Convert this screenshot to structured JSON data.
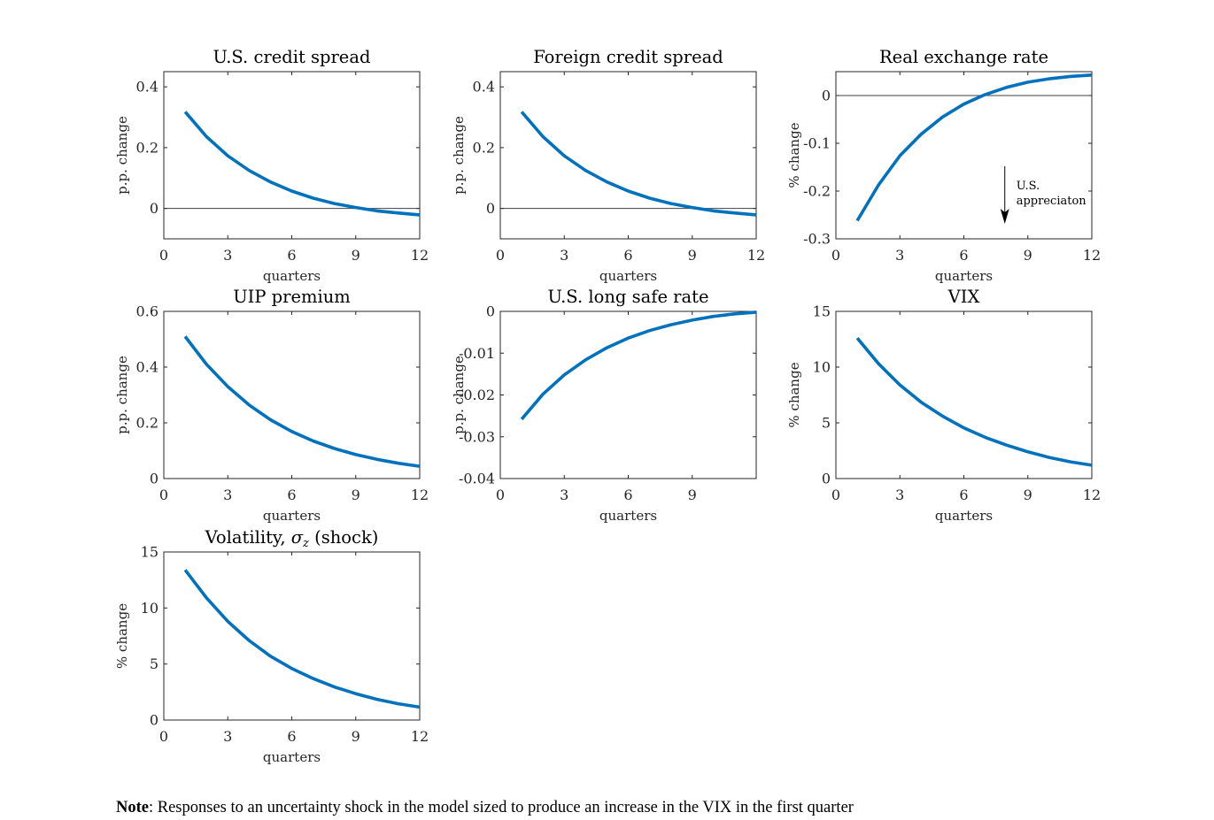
{
  "chart_data": [
    {
      "type": "line",
      "title": "U.S. credit spread",
      "xlabel": "quarters",
      "ylabel": "p.p. change",
      "xlim": [
        0,
        12
      ],
      "ylim": [
        -0.1,
        0.45
      ],
      "xticks": [
        0,
        3,
        6,
        9,
        12
      ],
      "yticks": [
        0,
        0.2,
        0.4
      ],
      "zero_line": true,
      "series": [
        {
          "color": "#0072BD",
          "x": [
            1,
            2,
            3,
            4,
            5,
            6,
            7,
            8,
            9,
            10,
            11,
            12
          ],
          "y": [
            0.318,
            0.236,
            0.173,
            0.125,
            0.087,
            0.057,
            0.034,
            0.016,
            0.003,
            -0.008,
            -0.015,
            -0.021
          ]
        }
      ]
    },
    {
      "type": "line",
      "title": "Foreign credit spread",
      "xlabel": "quarters",
      "ylabel": "p.p. change",
      "xlim": [
        0,
        12
      ],
      "ylim": [
        -0.1,
        0.45
      ],
      "xticks": [
        0,
        3,
        6,
        9,
        12
      ],
      "yticks": [
        0,
        0.2,
        0.4
      ],
      "zero_line": true,
      "series": [
        {
          "color": "#0072BD",
          "x": [
            1,
            2,
            3,
            4,
            5,
            6,
            7,
            8,
            9,
            10,
            11,
            12
          ],
          "y": [
            0.318,
            0.236,
            0.173,
            0.125,
            0.087,
            0.057,
            0.034,
            0.016,
            0.003,
            -0.008,
            -0.015,
            -0.021
          ]
        }
      ]
    },
    {
      "type": "line",
      "title": "Real exchange rate",
      "xlabel": "quarters",
      "ylabel": "% change",
      "xlim": [
        0,
        12
      ],
      "ylim": [
        -0.3,
        0.05
      ],
      "xticks": [
        0,
        3,
        6,
        9,
        12
      ],
      "yticks": [
        -0.3,
        -0.2,
        -0.1,
        0
      ],
      "zero_line": true,
      "annotation": {
        "text": [
          "U.S.",
          "appreciaton"
        ]
      },
      "series": [
        {
          "color": "#0072BD",
          "x": [
            1,
            2,
            3,
            4,
            5,
            6,
            7,
            8,
            9,
            10,
            11,
            12
          ],
          "y": [
            -0.262,
            -0.187,
            -0.126,
            -0.081,
            -0.045,
            -0.018,
            0.002,
            0.017,
            0.028,
            0.035,
            0.04,
            0.043
          ]
        }
      ]
    },
    {
      "type": "line",
      "title": "UIP premium",
      "xlabel": "quarters",
      "ylabel": "p.p. change",
      "xlim": [
        0,
        12
      ],
      "ylim": [
        0,
        0.6
      ],
      "xticks": [
        0,
        3,
        6,
        9,
        12
      ],
      "yticks": [
        0,
        0.2,
        0.4,
        0.6
      ],
      "zero_line": false,
      "series": [
        {
          "color": "#0072BD",
          "x": [
            1,
            2,
            3,
            4,
            5,
            6,
            7,
            8,
            9,
            10,
            11,
            12
          ],
          "y": [
            0.51,
            0.41,
            0.33,
            0.264,
            0.211,
            0.169,
            0.135,
            0.108,
            0.086,
            0.069,
            0.055,
            0.044
          ]
        }
      ]
    },
    {
      "type": "line",
      "title": "U.S. long safe rate",
      "xlabel": "quarters",
      "ylabel": "p.p. change",
      "xlim": [
        0,
        12
      ],
      "ylim": [
        -0.04,
        0
      ],
      "xticks": [
        0,
        3,
        6,
        9
      ],
      "yticks": [
        -0.04,
        -0.03,
        -0.02,
        -0.01,
        0
      ],
      "zero_line": false,
      "series": [
        {
          "color": "#0072BD",
          "x": [
            1,
            2,
            3,
            4,
            5,
            6,
            7,
            8,
            9,
            10,
            11,
            12
          ],
          "y": [
            -0.0258,
            -0.0198,
            -0.0152,
            -0.0116,
            -0.0087,
            -0.0064,
            -0.0046,
            -0.0032,
            -0.0021,
            -0.0012,
            -0.0006,
            -0.0002
          ]
        }
      ]
    },
    {
      "type": "line",
      "title": "VIX",
      "xlabel": "quarters",
      "ylabel": "% change",
      "xlim": [
        0,
        12
      ],
      "ylim": [
        0,
        15
      ],
      "xticks": [
        0,
        3,
        6,
        9,
        12
      ],
      "yticks": [
        0,
        5,
        10,
        15
      ],
      "zero_line": false,
      "series": [
        {
          "color": "#0072BD",
          "x": [
            1,
            2,
            3,
            4,
            5,
            6,
            7,
            8,
            9,
            10,
            11,
            12
          ],
          "y": [
            12.6,
            10.3,
            8.4,
            6.85,
            5.6,
            4.55,
            3.7,
            3.0,
            2.4,
            1.9,
            1.5,
            1.2
          ]
        }
      ]
    },
    {
      "type": "line",
      "title_parts": [
        "Volatility, ",
        "σ",
        "z",
        " (shock)"
      ],
      "xlabel": "quarters",
      "ylabel": "% change",
      "xlim": [
        0,
        12
      ],
      "ylim": [
        0,
        15
      ],
      "xticks": [
        0,
        3,
        6,
        9,
        12
      ],
      "yticks": [
        0,
        5,
        10,
        15
      ],
      "zero_line": false,
      "series": [
        {
          "color": "#0072BD",
          "x": [
            1,
            2,
            3,
            4,
            5,
            6,
            7,
            8,
            9,
            10,
            11,
            12
          ],
          "y": [
            13.4,
            10.9,
            8.8,
            7.1,
            5.7,
            4.6,
            3.7,
            2.95,
            2.35,
            1.85,
            1.45,
            1.15
          ]
        }
      ]
    }
  ],
  "note": {
    "label": "Note",
    "text": ": Responses to an uncertainty shock in the model sized to produce an increase in the VIX in the first quarter"
  }
}
